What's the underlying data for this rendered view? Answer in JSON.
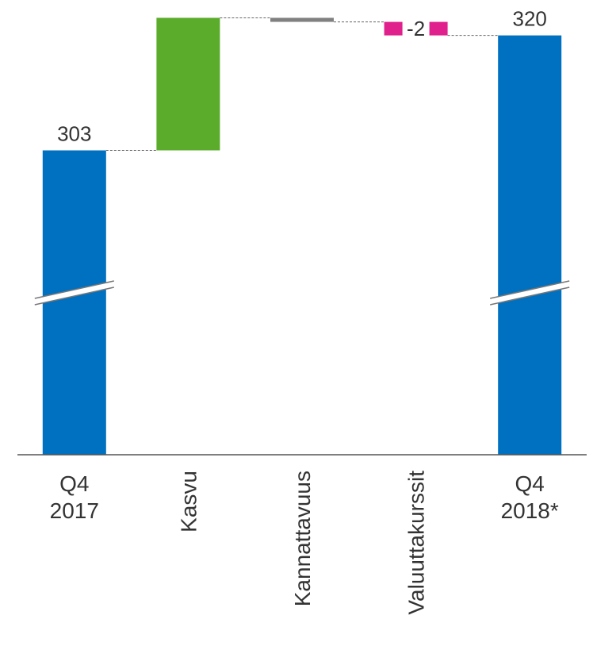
{
  "chart_data": {
    "type": "waterfall",
    "categories": [
      "Q4\n2017",
      "Kasvu",
      "Kannattavuus",
      "Valuuttakurssit",
      "Q4\n2018*"
    ],
    "values": [
      303,
      19.6,
      -0.6,
      -2,
      320
    ],
    "measure": [
      "total",
      "relative",
      "relative",
      "relative",
      "total"
    ],
    "labels": [
      true,
      false,
      false,
      true,
      true
    ],
    "colors": [
      "#0070c0",
      "#5aac2a",
      "#808080",
      "#e0208c",
      "#0070c0"
    ],
    "rotated_categories": [
      false,
      true,
      true,
      true,
      false
    ],
    "axis_break": true,
    "ylim": [
      258,
      325
    ]
  }
}
